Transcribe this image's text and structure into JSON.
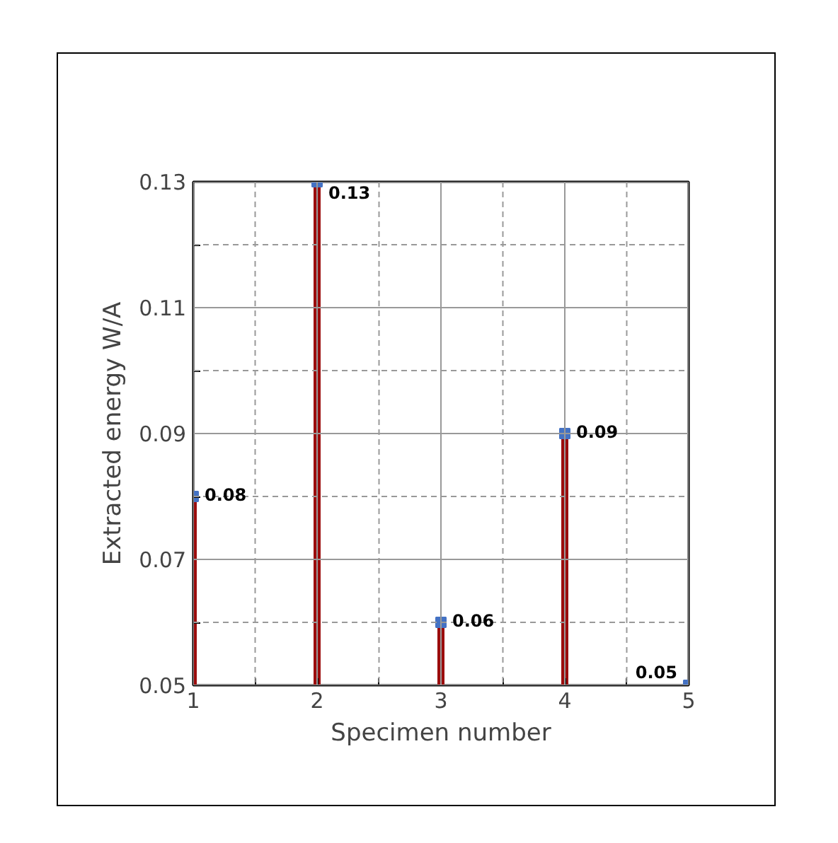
{
  "chart_data": {
    "type": "lollipop",
    "xlabel": "Specimen number",
    "ylabel": "Extracted energy W/A",
    "x": [
      1,
      2,
      3,
      4,
      5
    ],
    "values": [
      0.08,
      0.13,
      0.06,
      0.09,
      0.05
    ],
    "color": "#4472c4",
    "marker": "square",
    "data_labels": true,
    "xlim": [
      1,
      5
    ],
    "ylim": [
      0.05,
      0.13
    ],
    "xticks": [
      1,
      {
        "value": 1.5,
        "label": null
      },
      2,
      {
        "value": 2.5,
        "label": null
      },
      3,
      {
        "value": 3.5,
        "label": null
      },
      4,
      {
        "value": 4.5,
        "label": null
      },
      5
    ],
    "yticks": [
      0.05,
      {
        "value": 0.06,
        "label": null
      },
      0.07,
      {
        "value": 0.08,
        "label": null
      },
      0.09,
      {
        "value": 0.1,
        "label": null
      },
      0.11,
      {
        "value": 0.12,
        "label": null
      },
      0.13
    ],
    "grid": true
  }
}
